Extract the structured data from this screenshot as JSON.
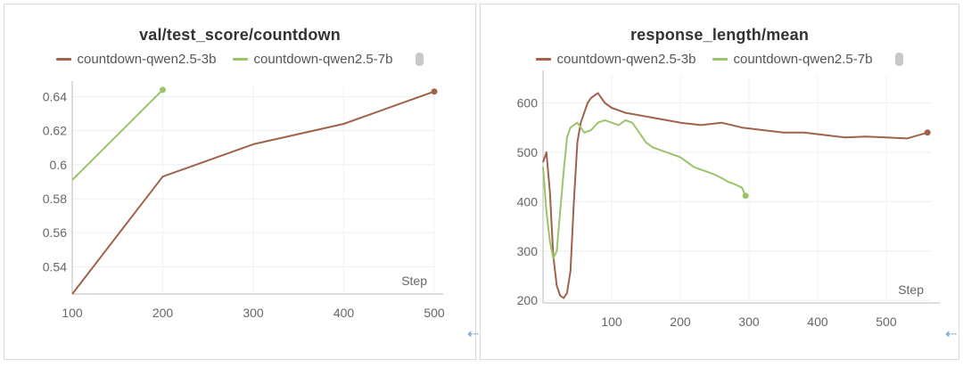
{
  "charts": [
    {
      "chart_data": {
        "type": "line",
        "title": "val/test_score/countdown",
        "xlabel": "Step",
        "ylabel": "",
        "xlim": [
          100,
          500
        ],
        "ylim": [
          0.524,
          0.646
        ],
        "x_ticks": [
          100,
          200,
          300,
          400,
          500
        ],
        "y_ticks": [
          0.54,
          0.56,
          0.58,
          0.6,
          0.62,
          0.64
        ],
        "grid": true,
        "legend": "top-center",
        "series": [
          {
            "name": "countdown-qwen2.5-3b",
            "color": "#a0624b",
            "x": [
              100,
              200,
              300,
              400,
              500
            ],
            "y": [
              0.524,
              0.593,
              0.612,
              0.624,
              0.643
            ]
          },
          {
            "name": "countdown-qwen2.5-7b",
            "color": "#9bc46a",
            "x": [
              100,
              200
            ],
            "y": [
              0.591,
              0.644
            ]
          }
        ]
      }
    },
    {
      "chart_data": {
        "type": "line",
        "title": "response_length/mean",
        "xlabel": "Step",
        "ylabel": "",
        "xlim": [
          0,
          565
        ],
        "ylim": [
          195,
          655
        ],
        "x_ticks": [
          100,
          200,
          300,
          400,
          500
        ],
        "y_ticks": [
          200,
          300,
          400,
          500,
          600
        ],
        "grid": true,
        "legend": "top-center",
        "series": [
          {
            "name": "countdown-qwen2.5-3b",
            "color": "#a0624b",
            "x": [
              0,
              5,
              10,
              15,
              20,
              25,
              30,
              35,
              40,
              45,
              50,
              55,
              60,
              65,
              70,
              75,
              80,
              90,
              100,
              120,
              140,
              160,
              180,
              200,
              230,
              260,
              290,
              320,
              350,
              380,
              410,
              440,
              470,
              500,
              530,
              560
            ],
            "y": [
              480,
              500,
              420,
              290,
              230,
              210,
              205,
              215,
              260,
              400,
              520,
              560,
              580,
              600,
              610,
              615,
              620,
              600,
              590,
              580,
              575,
              570,
              565,
              560,
              555,
              560,
              550,
              545,
              540,
              540,
              535,
              530,
              532,
              530,
              528,
              540
            ]
          },
          {
            "name": "countdown-qwen2.5-7b",
            "color": "#9bc46a",
            "x": [
              0,
              5,
              10,
              15,
              20,
              25,
              30,
              35,
              40,
              50,
              60,
              70,
              80,
              90,
              100,
              110,
              120,
              130,
              140,
              150,
              160,
              170,
              180,
              190,
              200,
              210,
              220,
              230,
              240,
              250,
              260,
              270,
              280,
              290,
              295
            ],
            "y": [
              470,
              380,
              320,
              285,
              300,
              380,
              460,
              530,
              550,
              560,
              540,
              545,
              560,
              565,
              560,
              555,
              565,
              560,
              540,
              520,
              510,
              505,
              500,
              495,
              490,
              480,
              470,
              465,
              460,
              455,
              448,
              440,
              435,
              428,
              412
            ]
          }
        ]
      }
    }
  ],
  "ui": {
    "collapse_icon": "⇠"
  }
}
